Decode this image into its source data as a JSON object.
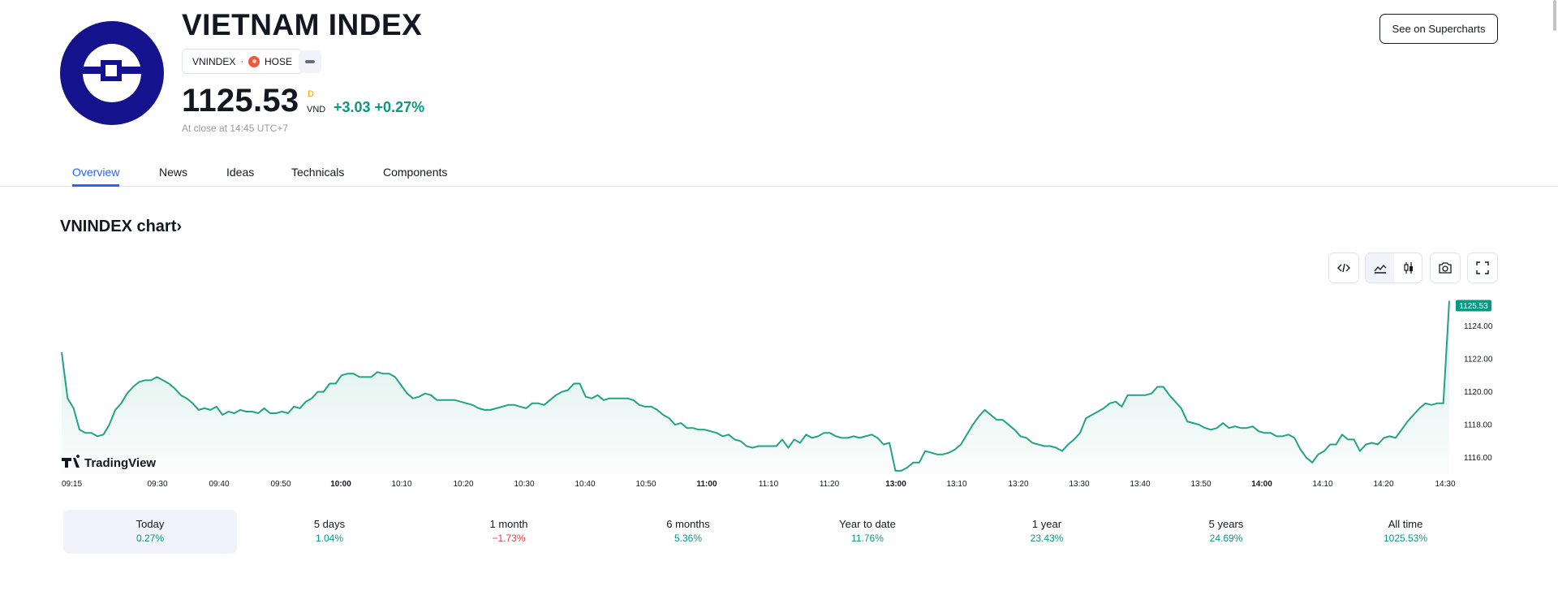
{
  "header": {
    "title": "VIETNAM INDEX",
    "ticker": "VNINDEX",
    "separator": "·",
    "exchange": "HOSE",
    "exchange_icon": "exchange-flag-icon",
    "more_icon": "minus-icon",
    "price": "1125.53",
    "price_flag": "D",
    "currency": "VND",
    "change": "+3.03 +0.27%",
    "close_note": "At close at 14:45 UTC+7",
    "supercharts_label": "See on Supercharts",
    "logo_icon": "vnindex-logo-icon"
  },
  "tabs": [
    {
      "label": "Overview",
      "active": true
    },
    {
      "label": "News",
      "active": false
    },
    {
      "label": "Ideas",
      "active": false
    },
    {
      "label": "Technicals",
      "active": false
    },
    {
      "label": "Components",
      "active": false
    }
  ],
  "chart_section": {
    "title": "VNINDEX chart",
    "title_arrow": "›",
    "toolbar": [
      "embed-code-icon",
      "line-chart-icon",
      "candles-icon",
      "camera-icon",
      "fullscreen-icon"
    ],
    "watermark": "TradingView"
  },
  "chart_data": {
    "type": "area",
    "title": "",
    "xlabel": "",
    "ylabel": "",
    "x_ticks": [
      "09:15",
      "09:30",
      "09:40",
      "09:50",
      "10:00",
      "10:10",
      "10:20",
      "10:30",
      "10:40",
      "10:50",
      "11:00",
      "11:10",
      "11:20",
      "13:00",
      "13:10",
      "13:20",
      "13:30",
      "13:40",
      "13:50",
      "14:00",
      "14:10",
      "14:20",
      "14:30"
    ],
    "x_ticks_bold": [
      "10:00",
      "11:00",
      "13:00",
      "14:00"
    ],
    "y_ticks": [
      "1116.00",
      "1118.00",
      "1120.00",
      "1122.00",
      "1124.00"
    ],
    "ylim": [
      1115.0,
      1125.9
    ],
    "last_value_label": "1125.53",
    "line_color": "#22a386",
    "label_color": "#089981",
    "grid": false,
    "values": [
      1122.4,
      1119.6,
      1119.0,
      1117.7,
      1117.5,
      1117.5,
      1117.3,
      1117.4,
      1118.0,
      1118.9,
      1119.3,
      1119.9,
      1120.3,
      1120.6,
      1120.7,
      1120.7,
      1120.9,
      1120.7,
      1120.5,
      1120.2,
      1119.8,
      1119.6,
      1119.3,
      1118.9,
      1119.0,
      1118.9,
      1119.1,
      1118.6,
      1118.8,
      1118.7,
      1118.9,
      1118.8,
      1118.8,
      1118.7,
      1119.0,
      1118.7,
      1118.7,
      1118.8,
      1118.7,
      1119.1,
      1119.0,
      1119.4,
      1119.6,
      1120.0,
      1120.0,
      1120.5,
      1120.5,
      1121.0,
      1121.1,
      1121.1,
      1120.9,
      1120.9,
      1120.9,
      1121.2,
      1121.1,
      1121.1,
      1120.9,
      1120.4,
      1119.9,
      1119.6,
      1119.7,
      1119.9,
      1119.8,
      1119.5,
      1119.5,
      1119.5,
      1119.5,
      1119.4,
      1119.3,
      1119.2,
      1119.0,
      1118.9,
      1118.9,
      1119.0,
      1119.1,
      1119.2,
      1119.2,
      1119.1,
      1119.0,
      1119.3,
      1119.3,
      1119.2,
      1119.5,
      1119.8,
      1120.0,
      1120.1,
      1120.5,
      1120.5,
      1119.7,
      1119.6,
      1119.8,
      1119.5,
      1119.6,
      1119.6,
      1119.6,
      1119.6,
      1119.5,
      1119.2,
      1119.1,
      1119.1,
      1118.9,
      1118.6,
      1118.4,
      1118.0,
      1118.1,
      1117.8,
      1117.8,
      1117.7,
      1117.7,
      1117.6,
      1117.5,
      1117.3,
      1117.4,
      1117.1,
      1117.0,
      1116.7,
      1116.6,
      1116.7,
      1116.7,
      1116.7,
      1116.7,
      1117.1,
      1116.6,
      1117.1,
      1116.9,
      1117.4,
      1117.2,
      1117.3,
      1117.5,
      1117.5,
      1117.3,
      1117.2,
      1117.2,
      1117.3,
      1117.2,
      1117.3,
      1117.4,
      1117.2,
      1116.8,
      1116.9,
      1115.2,
      1115.2,
      1115.4,
      1115.7,
      1115.7,
      1116.4,
      1116.3,
      1116.2,
      1116.2,
      1116.3,
      1116.5,
      1116.8,
      1117.4,
      1118.0,
      1118.5,
      1118.9,
      1118.6,
      1118.3,
      1118.3,
      1118.0,
      1117.7,
      1117.3,
      1117.2,
      1116.9,
      1116.8,
      1116.7,
      1116.7,
      1116.6,
      1116.4,
      1116.8,
      1117.1,
      1117.5,
      1118.4,
      1118.6,
      1118.8,
      1119.0,
      1119.3,
      1119.4,
      1119.1,
      1119.8,
      1119.8,
      1119.8,
      1119.8,
      1119.9,
      1120.3,
      1120.3,
      1119.8,
      1119.4,
      1119.0,
      1118.2,
      1118.1,
      1118.0,
      1117.8,
      1117.7,
      1117.8,
      1118.1,
      1117.8,
      1117.9,
      1117.8,
      1117.8,
      1117.9,
      1117.6,
      1117.5,
      1117.5,
      1117.3,
      1117.3,
      1117.4,
      1117.2,
      1116.5,
      1116.0,
      1115.7,
      1116.2,
      1116.4,
      1116.8,
      1116.8,
      1117.4,
      1117.1,
      1117.1,
      1116.4,
      1116.8,
      1116.9,
      1116.8,
      1117.2,
      1117.3,
      1117.2,
      1117.7,
      1118.2,
      1118.6,
      1119.0,
      1119.3,
      1119.2,
      1119.3,
      1119.3,
      1125.53
    ]
  },
  "periods": [
    {
      "label": "Today",
      "value": "0.27%",
      "positive": true,
      "selected": true
    },
    {
      "label": "5 days",
      "value": "1.04%",
      "positive": true,
      "selected": false
    },
    {
      "label": "1 month",
      "value": "−1.73%",
      "positive": false,
      "selected": false
    },
    {
      "label": "6 months",
      "value": "5.36%",
      "positive": true,
      "selected": false
    },
    {
      "label": "Year to date",
      "value": "11.76%",
      "positive": true,
      "selected": false
    },
    {
      "label": "1 year",
      "value": "23.43%",
      "positive": true,
      "selected": false
    },
    {
      "label": "5 years",
      "value": "24.69%",
      "positive": true,
      "selected": false
    },
    {
      "label": "All time",
      "value": "1025.53%",
      "positive": true,
      "selected": false
    }
  ],
  "colors": {
    "accent": "#2962ff",
    "positive": "#089981",
    "negative": "#f23645",
    "logo_bg": "#14128c"
  }
}
